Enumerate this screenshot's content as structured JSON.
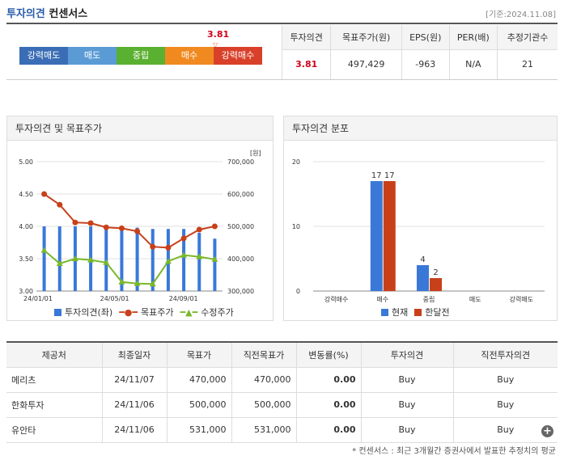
{
  "header": {
    "title_a": "투자의견",
    "title_b": "컨센서스",
    "standard": "[기준:2024.11.08]"
  },
  "scale": {
    "marker_value": "3.81",
    "marker_ratio": 0.81,
    "items": [
      {
        "label": "강력매도",
        "color": "#3a6db5"
      },
      {
        "label": "매도",
        "color": "#5b9bd5"
      },
      {
        "label": "중립",
        "color": "#5ab030"
      },
      {
        "label": "매수",
        "color": "#f08a20"
      },
      {
        "label": "강력매수",
        "color": "#d9402a"
      }
    ]
  },
  "summary": {
    "headers": [
      "투자의견",
      "목표주가(원)",
      "EPS(원)",
      "PER(배)",
      "추정기관수"
    ],
    "values": [
      "3.81",
      "497,429",
      "-963",
      "N/A",
      "21"
    ]
  },
  "chart_left": {
    "title": "투자의견 및 목표주가",
    "y_right_unit": "[원]",
    "legend": [
      "투자의견(좌)",
      "목표주가",
      "수정주가"
    ],
    "colors": {
      "bar": "#3a78d8",
      "target": "#c8401a",
      "price": "#7ab82a"
    }
  },
  "chart_right": {
    "title": "투자의견 분포",
    "legend": [
      "현재",
      "한달전"
    ],
    "colors": {
      "current": "#3a78d8",
      "prev": "#c8401a"
    }
  },
  "chart_data": [
    {
      "type": "bar",
      "title": "투자의견 및 목표주가",
      "x_ticks": [
        "24/01/01",
        "24/05/01",
        "24/09/01"
      ],
      "ylim": [
        3.0,
        5.0
      ],
      "y_ticks": [
        "5.00",
        "4.50",
        "4.00",
        "3.50",
        "3.00"
      ],
      "y2lim": [
        300000,
        700000
      ],
      "y2_ticks": [
        "700,000",
        "600,000",
        "500,000",
        "400,000",
        "300,000"
      ],
      "series": [
        {
          "name": "투자의견(좌)",
          "kind": "bar",
          "values": [
            4.0,
            4.0,
            4.0,
            4.0,
            3.99,
            3.99,
            3.98,
            3.96,
            3.96,
            3.96,
            3.9,
            3.81
          ]
        },
        {
          "name": "목표주가",
          "kind": "line",
          "values": [
            600000,
            567000,
            512000,
            510000,
            497000,
            494000,
            485000,
            437000,
            434000,
            463000,
            490000,
            500000
          ]
        },
        {
          "name": "수정주가",
          "kind": "line",
          "values": [
            426000,
            385000,
            400000,
            396000,
            388000,
            328000,
            323000,
            322000,
            392000,
            411000,
            406000,
            398000
          ]
        }
      ]
    },
    {
      "type": "bar",
      "title": "투자의견 분포",
      "categories": [
        "강력매수",
        "매수",
        "중립",
        "매도",
        "강력매도"
      ],
      "ylim": [
        0,
        20
      ],
      "y_ticks": [
        "20",
        "10",
        "0"
      ],
      "series": [
        {
          "name": "현재",
          "values": [
            0,
            17,
            4,
            0,
            0
          ]
        },
        {
          "name": "한달전",
          "values": [
            0,
            17,
            2,
            0,
            0
          ]
        }
      ]
    }
  ],
  "table": {
    "headers": [
      "제공처",
      "최종일자",
      "목표가",
      "직전목표가",
      "변동률(%)",
      "투자의견",
      "직전투자의견"
    ],
    "rows": [
      [
        "메리츠",
        "24/11/07",
        "470,000",
        "470,000",
        "0.00",
        "Buy",
        "Buy"
      ],
      [
        "한화투자",
        "24/11/06",
        "500,000",
        "500,000",
        "0.00",
        "Buy",
        "Buy"
      ],
      [
        "유안타",
        "24/11/06",
        "531,000",
        "531,000",
        "0.00",
        "Buy",
        "Buy"
      ]
    ]
  },
  "note": "* 컨센서스 : 최근 3개월간 증권사에서 발표한 추정치의 평균"
}
